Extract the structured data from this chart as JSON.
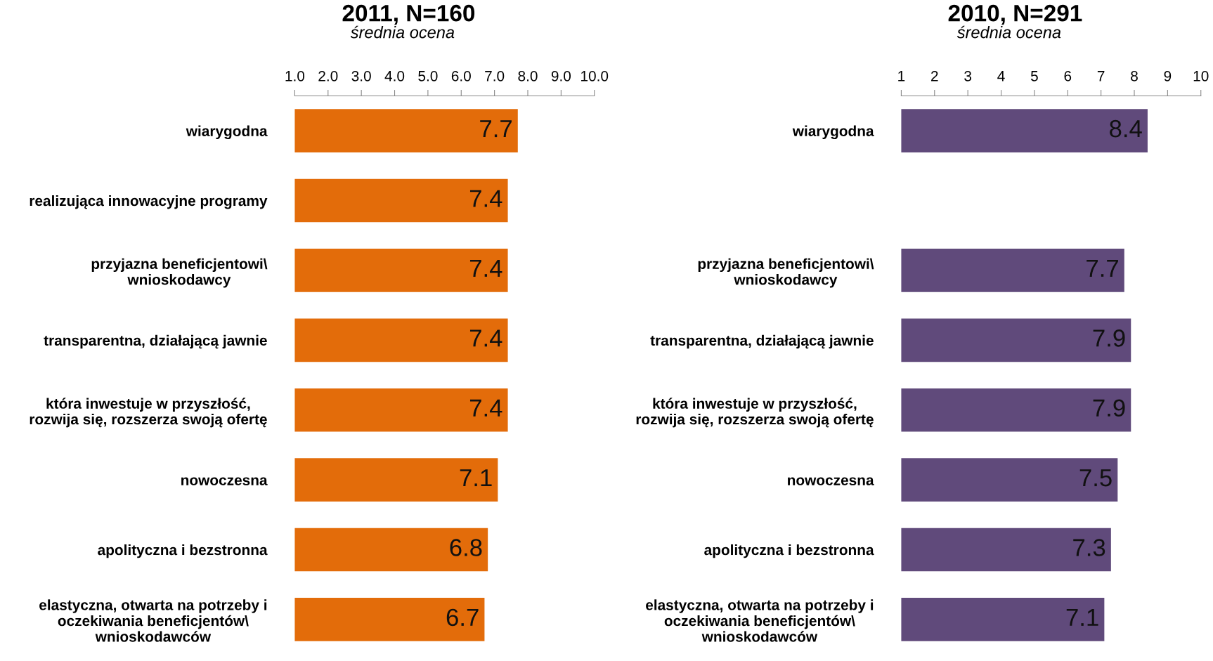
{
  "chart_data": [
    {
      "type": "bar",
      "orientation": "horizontal",
      "title": "2011, N=160",
      "subtitle": "średnia ocena",
      "categories": [
        "wiarygodna",
        "realizująca innowacyjne programy",
        "przyjazna beneficjentowi\\\nwnioskodawcy",
        "transparentna, działającą jawnie",
        "która inwestuje w przyszłość,\nrozwija się, rozszerza swoją ofertę",
        "nowoczesna",
        "apolityczna i bezstronna",
        "elastyczna, otwarta na potrzeby i\noczekiwania beneficjentów\\\nwnioskodawców"
      ],
      "values": [
        7.7,
        7.4,
        7.4,
        7.4,
        7.4,
        7.1,
        6.8,
        6.7
      ],
      "color": "#e36c0a",
      "xlim": [
        1,
        10
      ],
      "xticks": [
        {
          "value": 1,
          "label": "1.0"
        },
        {
          "value": 2,
          "label": "2.0"
        },
        {
          "value": 3,
          "label": "3.0"
        },
        {
          "value": 4,
          "label": "4.0"
        },
        {
          "value": 5,
          "label": "5.0"
        },
        {
          "value": 6,
          "label": "6.0"
        },
        {
          "value": 7,
          "label": "7.0"
        },
        {
          "value": 8,
          "label": "8.0"
        },
        {
          "value": 9,
          "label": "9.0"
        },
        {
          "value": 10,
          "label": "10.0"
        }
      ],
      "data_labels": true,
      "grid": false
    },
    {
      "type": "bar",
      "orientation": "horizontal",
      "title": "2010, N=291",
      "subtitle": "średnia ocena",
      "categories": [
        "wiarygodna",
        null,
        "przyjazna beneficjentowi\\\nwnioskodawcy",
        "transparentna, działającą jawnie",
        "która inwestuje w przyszłość,\nrozwija się, rozszerza swoją ofertę",
        "nowoczesna",
        "apolityczna i bezstronna",
        "elastyczna, otwarta na potrzeby i\noczekiwania beneficjentów\\\nwnioskodawców"
      ],
      "values": [
        8.4,
        null,
        7.7,
        7.9,
        7.9,
        7.5,
        7.3,
        7.1
      ],
      "color": "#604a7b",
      "xlim": [
        1,
        10
      ],
      "xticks": [
        1,
        2,
        3,
        4,
        5,
        6,
        7,
        8,
        9,
        10
      ],
      "data_labels": true,
      "grid": false
    }
  ]
}
